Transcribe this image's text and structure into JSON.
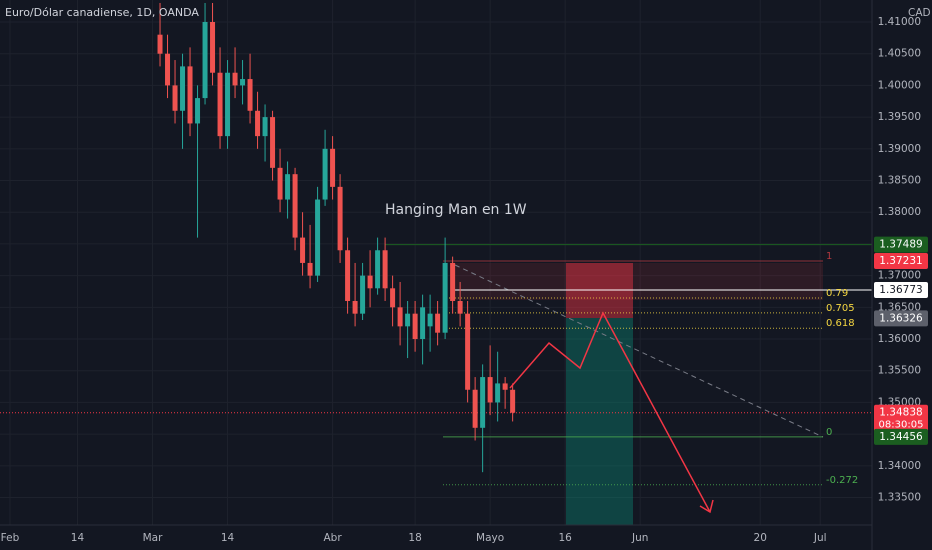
{
  "chart_data": {
    "type": "candlestick",
    "title": "Euro/Dólar canadiense, 1D, OANDA",
    "currency": "CAD",
    "annotation": "Hanging Man en 1W",
    "x": [
      20,
      21,
      22,
      23,
      24,
      25,
      26,
      27,
      28,
      29,
      30,
      31,
      32,
      33,
      34,
      35,
      36,
      37,
      38,
      39,
      40,
      41,
      42,
      43,
      44,
      45,
      46,
      47,
      48,
      49,
      50,
      51,
      52,
      53,
      54,
      55,
      56,
      57,
      58,
      59,
      60,
      61,
      62,
      63,
      64,
      65,
      66,
      67
    ],
    "open": [
      1.408,
      1.405,
      1.4,
      1.396,
      1.403,
      1.394,
      1.398,
      1.41,
      1.402,
      1.392,
      1.402,
      1.4,
      1.401,
      1.396,
      1.392,
      1.395,
      1.387,
      1.382,
      1.386,
      1.376,
      1.372,
      1.37,
      1.382,
      1.39,
      1.384,
      1.374,
      1.366,
      1.364,
      1.37,
      1.368,
      1.374,
      1.368,
      1.365,
      1.362,
      1.364,
      1.36,
      1.362,
      1.364,
      1.361,
      1.372,
      1.366,
      1.364,
      1.352,
      1.346,
      1.354,
      1.35,
      1.353,
      1.352
    ],
    "high": [
      1.413,
      1.408,
      1.404,
      1.405,
      1.406,
      1.4,
      1.413,
      1.413,
      1.406,
      1.404,
      1.406,
      1.404,
      1.405,
      1.399,
      1.397,
      1.396,
      1.39,
      1.388,
      1.387,
      1.38,
      1.378,
      1.384,
      1.393,
      1.392,
      1.386,
      1.376,
      1.372,
      1.372,
      1.374,
      1.376,
      1.376,
      1.37,
      1.369,
      1.366,
      1.366,
      1.367,
      1.367,
      1.366,
      1.376,
      1.373,
      1.369,
      1.366,
      1.354,
      1.356,
      1.359,
      1.358,
      1.354,
      1.353
    ],
    "low": [
      1.403,
      1.398,
      1.394,
      1.39,
      1.392,
      1.376,
      1.397,
      1.4,
      1.39,
      1.39,
      1.398,
      1.397,
      1.394,
      1.39,
      1.388,
      1.385,
      1.38,
      1.379,
      1.374,
      1.37,
      1.368,
      1.369,
      1.381,
      1.382,
      1.372,
      1.364,
      1.362,
      1.363,
      1.365,
      1.367,
      1.366,
      1.362,
      1.359,
      1.357,
      1.358,
      1.356,
      1.358,
      1.359,
      1.36,
      1.364,
      1.362,
      1.35,
      1.344,
      1.339,
      1.348,
      1.347,
      1.349,
      1.347
    ],
    "close": [
      1.405,
      1.4,
      1.396,
      1.403,
      1.394,
      1.398,
      1.41,
      1.402,
      1.392,
      1.402,
      1.4,
      1.401,
      1.396,
      1.392,
      1.395,
      1.387,
      1.382,
      1.386,
      1.376,
      1.372,
      1.37,
      1.382,
      1.39,
      1.384,
      1.374,
      1.366,
      1.364,
      1.37,
      1.368,
      1.374,
      1.368,
      1.365,
      1.362,
      1.364,
      1.36,
      1.365,
      1.364,
      1.361,
      1.372,
      1.366,
      1.364,
      1.352,
      1.346,
      1.354,
      1.35,
      1.353,
      1.352,
      1.34838
    ],
    "up_color": "#26a69a",
    "down_color": "#ef5350",
    "xlim": [
      -1.33,
      114.9
    ],
    "ylim": [
      1.33067,
      1.41347
    ],
    "xticks": [
      {
        "value": 0,
        "label": "Feb"
      },
      {
        "value": 9,
        "label": "14"
      },
      {
        "value": 19,
        "label": "Mar"
      },
      {
        "value": 29,
        "label": "14"
      },
      {
        "value": 43,
        "label": "Abr"
      },
      {
        "value": 54,
        "label": "18"
      },
      {
        "value": 64,
        "label": "Mayo"
      },
      {
        "value": 74,
        "label": "16"
      },
      {
        "value": 84,
        "label": "Jun"
      },
      {
        "value": 100,
        "label": "20"
      },
      {
        "value": 108,
        "label": "Jul"
      }
    ],
    "yticks": [
      {
        "value": 1.335,
        "label": "1.33500"
      },
      {
        "value": 1.34,
        "label": "1.34000"
      },
      {
        "value": 1.345,
        "label": "1.34500"
      },
      {
        "value": 1.35,
        "label": "1.35000"
      },
      {
        "value": 1.355,
        "label": "1.35500"
      },
      {
        "value": 1.36,
        "label": "1.36000"
      },
      {
        "value": 1.365,
        "label": "1.36500"
      },
      {
        "value": 1.37,
        "label": "1.37000"
      },
      {
        "value": 1.375,
        "label": "1.37500"
      },
      {
        "value": 1.38,
        "label": "1.38000"
      },
      {
        "value": 1.385,
        "label": "1.38500"
      },
      {
        "value": 1.39,
        "label": "1.39000"
      },
      {
        "value": 1.395,
        "label": "1.39500"
      },
      {
        "value": 1.4,
        "label": "1.40000"
      },
      {
        "value": 1.405,
        "label": "1.40500"
      },
      {
        "value": 1.41,
        "label": "1.41000"
      }
    ],
    "grid": true,
    "price_tags": [
      {
        "price": 1.37489,
        "color": "#1b5e20"
      },
      {
        "price": 1.37231,
        "color": "#f23645"
      },
      {
        "price": 1.36773,
        "color": "#ffffff"
      },
      {
        "price": 1.36326,
        "color": "#5d606b"
      },
      {
        "price": 1.34838,
        "color": "#f23645",
        "countdown": "08:30:05"
      },
      {
        "price": 1.34456,
        "color": "#1b5e20"
      }
    ],
    "fib_levels": [
      {
        "level": 1,
        "price": 1.37231,
        "color": "#b2383f"
      },
      {
        "level": 0.79,
        "price": 1.36648,
        "color": "#f5d742"
      },
      {
        "level": 0.705,
        "price": 1.36412,
        "color": "#f5d742"
      },
      {
        "level": 0.618,
        "price": 1.36171,
        "color": "#f5d742"
      },
      {
        "level": 0,
        "price": 1.34456,
        "color": "#4caf50"
      },
      {
        "level": -0.272,
        "price": 1.33701,
        "color": "#4caf50"
      }
    ]
  }
}
